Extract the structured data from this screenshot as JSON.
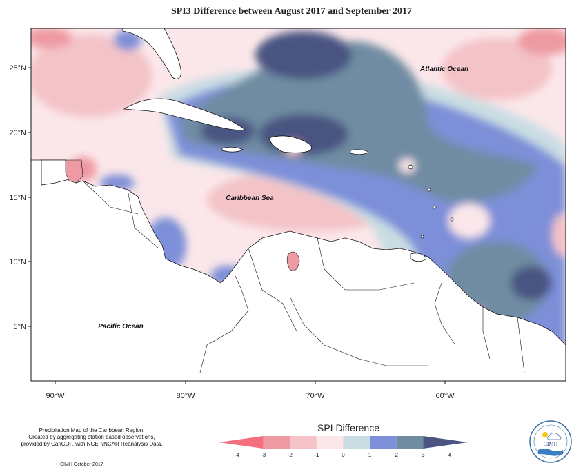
{
  "title": "SPI3 Difference between August 2017 and September 2017",
  "map": {
    "ocean_labels": [
      {
        "name": "atlantic",
        "text": "Atlantic Ocean"
      },
      {
        "name": "caribbean",
        "text": "Caribbean Sea"
      },
      {
        "name": "pacific",
        "text": "Pacific Ocean"
      }
    ],
    "lat_ticks": [
      "25°N",
      "20°N",
      "15°N",
      "10°N",
      "5°N"
    ],
    "lon_ticks": [
      "90°W",
      "80°W",
      "70°W",
      "60°W"
    ],
    "colors": {
      "strong_wet": "#3f4b7f",
      "mod_wet": "#5c7590",
      "wet": "#7d8fd8",
      "slight_wet": "#c9dde3",
      "neutral": "#fbe7ea",
      "slight_dry": "#f3c3c7",
      "dry": "#ee9aa2",
      "land": "#ffffff"
    }
  },
  "legend": {
    "title": "SPI Difference",
    "ticks": [
      "-4",
      "-3",
      "-2",
      "-1",
      "0",
      "1",
      "2",
      "3",
      "4"
    ],
    "colors": [
      "#f36f7f",
      "#ee9aa2",
      "#f3c3c7",
      "#fbe7ea",
      "#c9dde3",
      "#7d8fd8",
      "#6f8ca3",
      "#4a5581"
    ]
  },
  "credits": {
    "line1": "Precipitation Map of the Caribbean Region.",
    "line2": "Created by aggregating station based observations,",
    "line3": "provided by CariCOF, with NCEP/NCAR Reanalysis Data.",
    "footer": "CIMH October-2017"
  },
  "logo": {
    "text": "CIMH"
  }
}
